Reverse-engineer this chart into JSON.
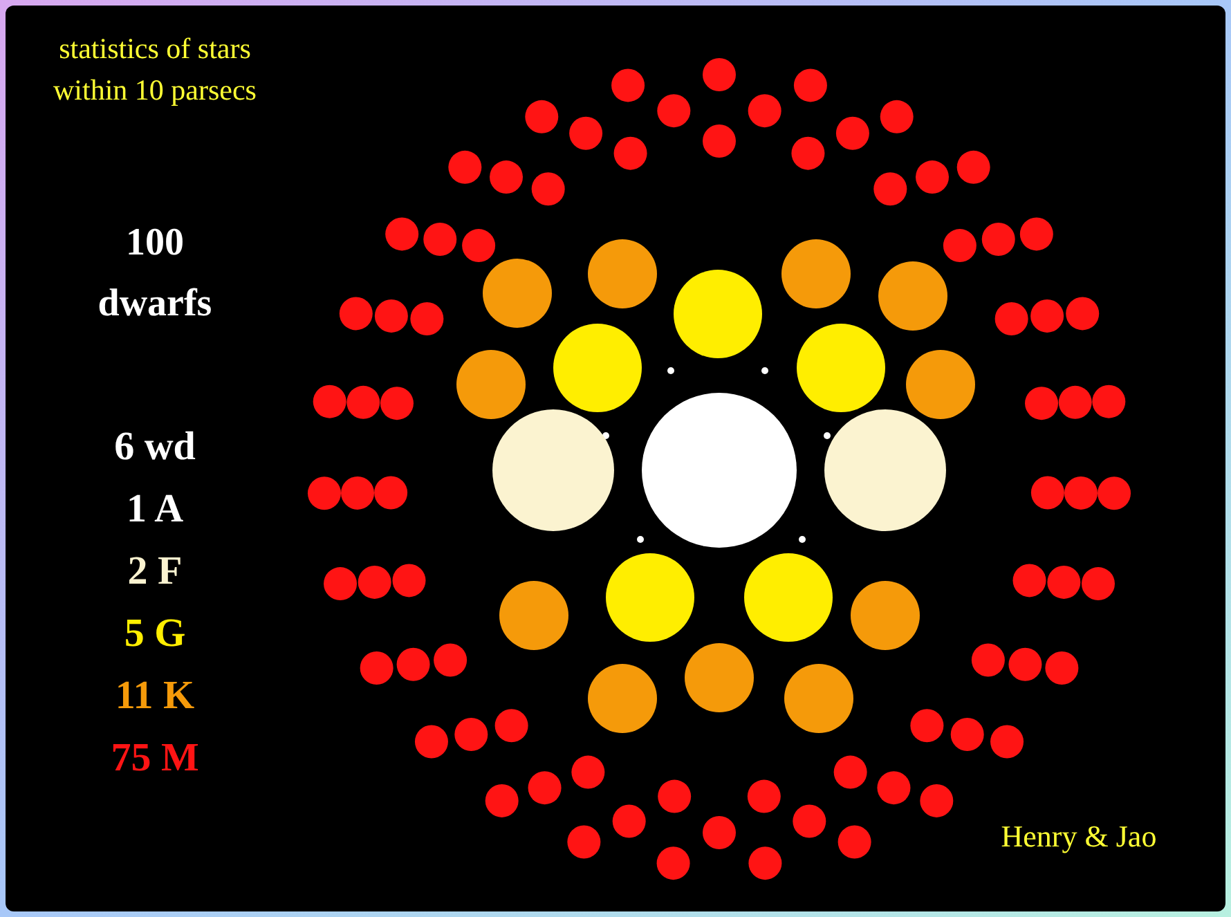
{
  "chart_data": {
    "type": "other",
    "title": "statistics of stars within 10 parsecs",
    "categories": [
      "wd",
      "A",
      "F",
      "G",
      "K",
      "M"
    ],
    "values": [
      6,
      1,
      2,
      5,
      11,
      75
    ],
    "colors": [
      "#ffffff",
      "#ffffff",
      "#fbf3d0",
      "#ffee00",
      "#f59a0a",
      "#ff1414"
    ],
    "data_labels": true,
    "annotations": [
      "100 dwarfs",
      "Henry & Jao"
    ]
  }
}
